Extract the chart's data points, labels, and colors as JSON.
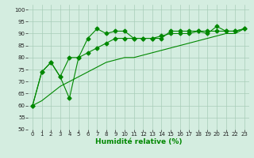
{
  "title": "",
  "xlabel": "Humidité relative (%)",
  "ylabel": "",
  "background_color": "#d4ede0",
  "grid_color": "#a8ccb8",
  "line_color": "#008800",
  "xlim": [
    -0.5,
    23.5
  ],
  "ylim": [
    50,
    102
  ],
  "yticks": [
    50,
    55,
    60,
    65,
    70,
    75,
    80,
    85,
    90,
    95,
    100
  ],
  "xticks": [
    0,
    1,
    2,
    3,
    4,
    5,
    6,
    7,
    8,
    9,
    10,
    11,
    12,
    13,
    14,
    15,
    16,
    17,
    18,
    19,
    20,
    21,
    22,
    23
  ],
  "series1": [
    60,
    74,
    78,
    72,
    63,
    80,
    88,
    92,
    90,
    91,
    91,
    88,
    88,
    88,
    88,
    91,
    91,
    91,
    91,
    90,
    93,
    91,
    91,
    92
  ],
  "series2": [
    60,
    74,
    78,
    72,
    80,
    80,
    82,
    84,
    86,
    88,
    88,
    88,
    88,
    88,
    89,
    90,
    90,
    90,
    91,
    91,
    91,
    91,
    91,
    92
  ],
  "series3": [
    60,
    62,
    65,
    68,
    70,
    72,
    74,
    76,
    78,
    79,
    80,
    80,
    81,
    82,
    83,
    84,
    85,
    86,
    87,
    88,
    89,
    90,
    90,
    92
  ],
  "xlabel_fontsize": 6.5,
  "tick_fontsize": 5.0
}
